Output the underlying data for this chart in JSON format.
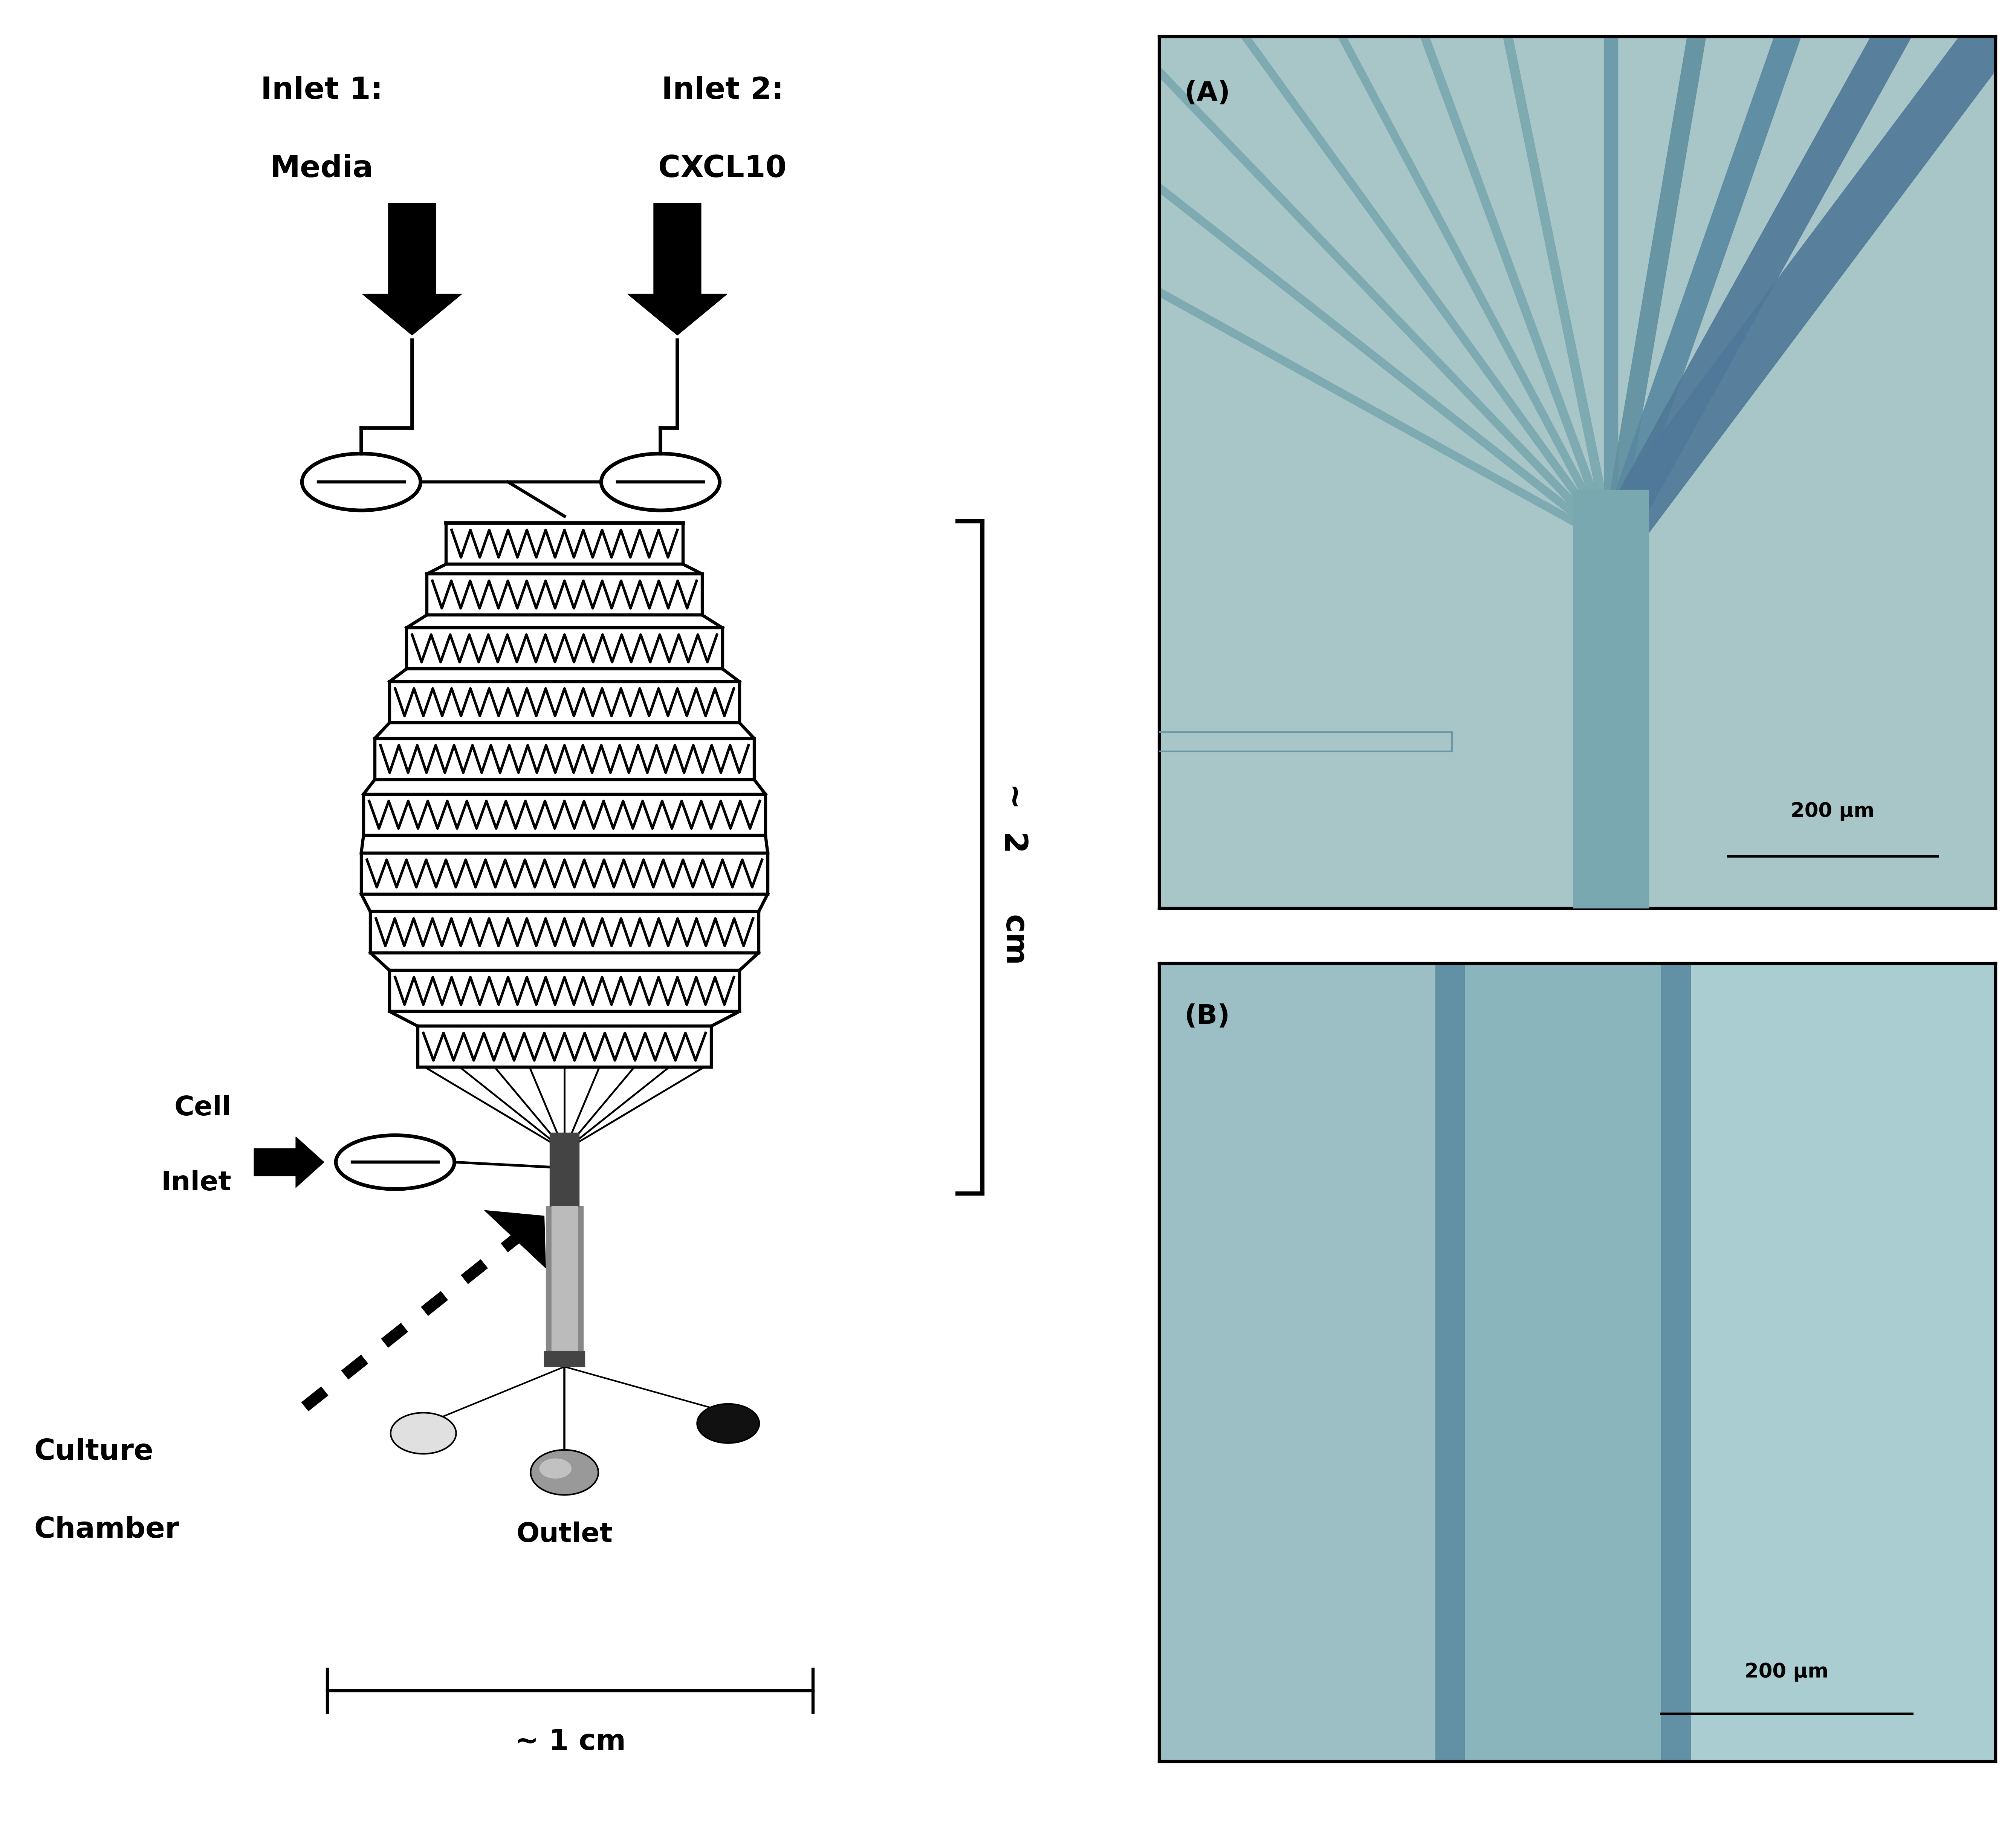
{
  "bg_color": "#ffffff",
  "inlet1_line1": "Inlet 1:",
  "inlet1_line2": "Media",
  "inlet2_line1": "Inlet 2:",
  "inlet2_line2": "CXCL10",
  "cell_inlet_line1": "Cell",
  "cell_inlet_line2": "Inlet",
  "culture_chamber_line1": "Culture",
  "culture_chamber_line2": "Chamber",
  "outlet_label": "Outlet",
  "dim_2cm_label": "~ 2 cm",
  "dim_1cm_label": "~ 1 cm",
  "panel_A_label": "(A)",
  "panel_B_label": "(B)",
  "scalebar_A": "200 μm",
  "scalebar_B": "200 μm",
  "micro_bg": "#a8c5c8",
  "channel_dark": "#6898a8",
  "channel_med": "#7aaab2",
  "channel_light": "#b0cdd0"
}
